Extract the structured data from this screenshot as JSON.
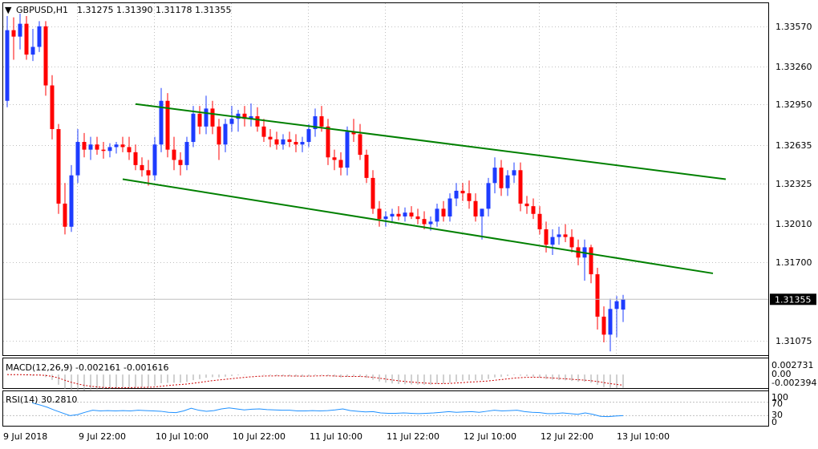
{
  "header": {
    "symbol_label": "GBPUSD,H1",
    "ohlc_label": "1.31275 1.31390 1.31178 1.31355"
  },
  "price_axis": {
    "labels": [
      "1.33570",
      "1.33260",
      "1.32950",
      "1.32635",
      "1.32325",
      "1.32010",
      "1.31700",
      "1.31075"
    ],
    "current_label": "1.31355"
  },
  "macd_panel": {
    "label": "MACD(12,26,9) -0.002161 -0.001616",
    "axis_labels": [
      "0.002731",
      "0.00",
      "-0.002394"
    ]
  },
  "rsi_panel": {
    "label": "RSI(14) 30.2810",
    "axis_labels": [
      "100",
      "70",
      "30",
      "0"
    ]
  },
  "time_axis": {
    "labels": [
      "9 Jul 2018",
      "9 Jul 22:00",
      "10 Jul 10:00",
      "10 Jul 22:00",
      "11 Jul 10:00",
      "11 Jul 22:00",
      "12 Jul 10:00",
      "12 Jul 22:00",
      "13 Jul 10:00"
    ]
  },
  "colors": {
    "bull": "#1e3cff",
    "bear": "#ff0000",
    "channel": "#008000",
    "macd": "#a0a0a0",
    "signal": "#cc0000",
    "rsi": "#1e90ff",
    "grid": "#c0c0c0"
  },
  "chart_data": [
    {
      "type": "candlestick",
      "title": "GBPUSD,H1",
      "x_start": "9 Jul 2018",
      "bar_interval": "1 hour",
      "ylim": [
        1.3092,
        1.3366
      ],
      "grid": true,
      "candles": [
        [
          1.329,
          1.3356,
          1.3285,
          1.3345
        ],
        [
          1.3345,
          1.3355,
          1.3322,
          1.334
        ],
        [
          1.334,
          1.3358,
          1.333,
          1.335
        ],
        [
          1.335,
          1.3356,
          1.3322,
          1.3326
        ],
        [
          1.3326,
          1.3346,
          1.3321,
          1.3332
        ],
        [
          1.3332,
          1.3352,
          1.3328,
          1.3348
        ],
        [
          1.3348,
          1.3352,
          1.3294,
          1.3302
        ],
        [
          1.3302,
          1.331,
          1.326,
          1.3268
        ],
        [
          1.3268,
          1.3272,
          1.3202,
          1.321
        ],
        [
          1.321,
          1.3226,
          1.3186,
          1.3192
        ],
        [
          1.3192,
          1.324,
          1.3188,
          1.3232
        ],
        [
          1.3232,
          1.3268,
          1.3226,
          1.3258
        ],
        [
          1.3258,
          1.3265,
          1.3246,
          1.3252
        ],
        [
          1.3252,
          1.3262,
          1.3244,
          1.3256
        ],
        [
          1.3256,
          1.3262,
          1.3248,
          1.3252
        ],
        [
          1.3252,
          1.3258,
          1.3245,
          1.3251
        ],
        [
          1.3251,
          1.3257,
          1.3246,
          1.3254
        ],
        [
          1.3254,
          1.3258,
          1.3249,
          1.3256
        ],
        [
          1.3256,
          1.3262,
          1.325,
          1.3254
        ],
        [
          1.3254,
          1.3262,
          1.3244,
          1.325
        ],
        [
          1.325,
          1.3256,
          1.3236,
          1.324
        ],
        [
          1.324,
          1.3246,
          1.3231,
          1.3236
        ],
        [
          1.3236,
          1.3244,
          1.3224,
          1.3232
        ],
        [
          1.3232,
          1.3262,
          1.3228,
          1.3256
        ],
        [
          1.3256,
          1.33,
          1.325,
          1.329
        ],
        [
          1.329,
          1.3296,
          1.3246,
          1.3252
        ],
        [
          1.3252,
          1.3262,
          1.3236,
          1.3244
        ],
        [
          1.3244,
          1.325,
          1.3232,
          1.324
        ],
        [
          1.324,
          1.3262,
          1.3236,
          1.3258
        ],
        [
          1.3258,
          1.3286,
          1.3254,
          1.328
        ],
        [
          1.328,
          1.3286,
          1.3264,
          1.327
        ],
        [
          1.327,
          1.3294,
          1.3264,
          1.3284
        ],
        [
          1.3284,
          1.329,
          1.3264,
          1.327
        ],
        [
          1.327,
          1.3276,
          1.3244,
          1.3256
        ],
        [
          1.3256,
          1.3276,
          1.325,
          1.3272
        ],
        [
          1.3272,
          1.3286,
          1.3266,
          1.3276
        ],
        [
          1.3276,
          1.3283,
          1.3266,
          1.328
        ],
        [
          1.328,
          1.3286,
          1.327,
          1.3276
        ],
        [
          1.3276,
          1.3288,
          1.327,
          1.3278
        ],
        [
          1.3278,
          1.3285,
          1.3266,
          1.327
        ],
        [
          1.327,
          1.3276,
          1.3258,
          1.3262
        ],
        [
          1.3262,
          1.3268,
          1.3254,
          1.326
        ],
        [
          1.326,
          1.3266,
          1.3252,
          1.3256
        ],
        [
          1.3256,
          1.3264,
          1.3252,
          1.326
        ],
        [
          1.326,
          1.3266,
          1.3254,
          1.3258
        ],
        [
          1.3258,
          1.3264,
          1.325,
          1.3256
        ],
        [
          1.3256,
          1.3262,
          1.325,
          1.3258
        ],
        [
          1.3258,
          1.3272,
          1.3254,
          1.3268
        ],
        [
          1.3268,
          1.3284,
          1.3262,
          1.3278
        ],
        [
          1.3278,
          1.3286,
          1.3266,
          1.327
        ],
        [
          1.327,
          1.3276,
          1.324,
          1.3246
        ],
        [
          1.3246,
          1.3252,
          1.3236,
          1.3244
        ],
        [
          1.3244,
          1.325,
          1.3232,
          1.3238
        ],
        [
          1.3238,
          1.327,
          1.3232,
          1.3266
        ],
        [
          1.3266,
          1.3276,
          1.3258,
          1.3264
        ],
        [
          1.3264,
          1.3272,
          1.3244,
          1.3248
        ],
        [
          1.3248,
          1.3252,
          1.3226,
          1.323
        ],
        [
          1.323,
          1.3236,
          1.3202,
          1.3206
        ],
        [
          1.3206,
          1.3212,
          1.3192,
          1.3198
        ],
        [
          1.3198,
          1.3204,
          1.3192,
          1.32
        ],
        [
          1.32,
          1.3206,
          1.3196,
          1.3202
        ],
        [
          1.3202,
          1.3208,
          1.3197,
          1.32
        ],
        [
          1.32,
          1.3207,
          1.3196,
          1.3203
        ],
        [
          1.3203,
          1.3208,
          1.3198,
          1.32
        ],
        [
          1.32,
          1.3206,
          1.3194,
          1.3198
        ],
        [
          1.3198,
          1.3204,
          1.319,
          1.3194
        ],
        [
          1.3194,
          1.32,
          1.3189,
          1.3196
        ],
        [
          1.3196,
          1.321,
          1.3192,
          1.3206
        ],
        [
          1.3206,
          1.3212,
          1.3196,
          1.32
        ],
        [
          1.32,
          1.3218,
          1.3196,
          1.3214
        ],
        [
          1.3214,
          1.3226,
          1.3208,
          1.322
        ],
        [
          1.322,
          1.3226,
          1.3212,
          1.3218
        ],
        [
          1.3218,
          1.3228,
          1.3206,
          1.3212
        ],
        [
          1.3212,
          1.3218,
          1.3196,
          1.32
        ],
        [
          1.32,
          1.3206,
          1.3182,
          1.3206
        ],
        [
          1.3206,
          1.323,
          1.32,
          1.3226
        ],
        [
          1.3226,
          1.3246,
          1.3218,
          1.3238
        ],
        [
          1.3238,
          1.3244,
          1.3216,
          1.3222
        ],
        [
          1.3222,
          1.3236,
          1.3216,
          1.3232
        ],
        [
          1.3232,
          1.3242,
          1.3226,
          1.3236
        ],
        [
          1.3236,
          1.3242,
          1.3204,
          1.321
        ],
        [
          1.321,
          1.3216,
          1.3202,
          1.3208
        ],
        [
          1.3208,
          1.3214,
          1.3198,
          1.3202
        ],
        [
          1.3202,
          1.3208,
          1.3186,
          1.319
        ],
        [
          1.319,
          1.3196,
          1.3172,
          1.3178
        ],
        [
          1.3178,
          1.319,
          1.317,
          1.3184
        ],
        [
          1.3184,
          1.3192,
          1.3178,
          1.3186
        ],
        [
          1.3186,
          1.3194,
          1.318,
          1.3184
        ],
        [
          1.3184,
          1.319,
          1.3172,
          1.3176
        ],
        [
          1.3176,
          1.3182,
          1.3162,
          1.3168
        ],
        [
          1.3168,
          1.3182,
          1.315,
          1.3176
        ],
        [
          1.3176,
          1.3178,
          1.3148,
          1.3155
        ],
        [
          1.3155,
          1.316,
          1.3112,
          1.3122
        ],
        [
          1.3122,
          1.313,
          1.3102,
          1.3108
        ],
        [
          1.3108,
          1.3136,
          1.3095,
          1.3128
        ],
        [
          1.3128,
          1.3138,
          1.3106,
          1.3134
        ],
        [
          1.31275,
          1.3139,
          1.31178,
          1.31355
        ]
      ],
      "trendlines": [
        {
          "from": {
            "bar": 20,
            "price": 1.32875
          },
          "to": {
            "bar": 112,
            "price": 1.3229
          }
        },
        {
          "from": {
            "bar": 18,
            "price": 1.3229
          },
          "to": {
            "bar": 110,
            "price": 1.31557
          }
        }
      ],
      "current_price": 1.31355
    },
    {
      "type": "line",
      "title": "MACD(12,26,9)",
      "ylim": [
        -0.002394,
        0.002731
      ],
      "series": [
        {
          "name": "MACD",
          "last": -0.002161
        },
        {
          "name": "Signal",
          "last": -0.001616
        }
      ]
    },
    {
      "type": "line",
      "title": "RSI(14)",
      "ylim": [
        0,
        100
      ],
      "levels": [
        30,
        70
      ],
      "series": [
        {
          "name": "RSI(14)",
          "values": [
            68,
            62,
            55,
            46,
            38,
            30,
            33,
            40,
            46,
            44,
            45,
            44,
            45,
            44,
            46,
            45,
            44,
            43,
            40,
            39,
            44,
            52,
            46,
            43,
            45,
            50,
            53,
            50,
            47,
            49,
            50,
            48,
            47,
            46,
            46,
            44,
            44,
            45,
            44,
            45,
            47,
            50,
            45,
            43,
            41,
            42,
            38,
            37,
            37,
            38,
            37,
            36,
            37,
            38,
            40,
            42,
            40,
            41,
            42,
            40,
            43,
            46,
            44,
            45,
            46,
            42,
            40,
            39,
            36,
            36,
            38,
            36,
            34,
            38,
            34,
            28,
            27,
            29,
            30
          ]
        }
      ],
      "last": 30.281
    }
  ]
}
